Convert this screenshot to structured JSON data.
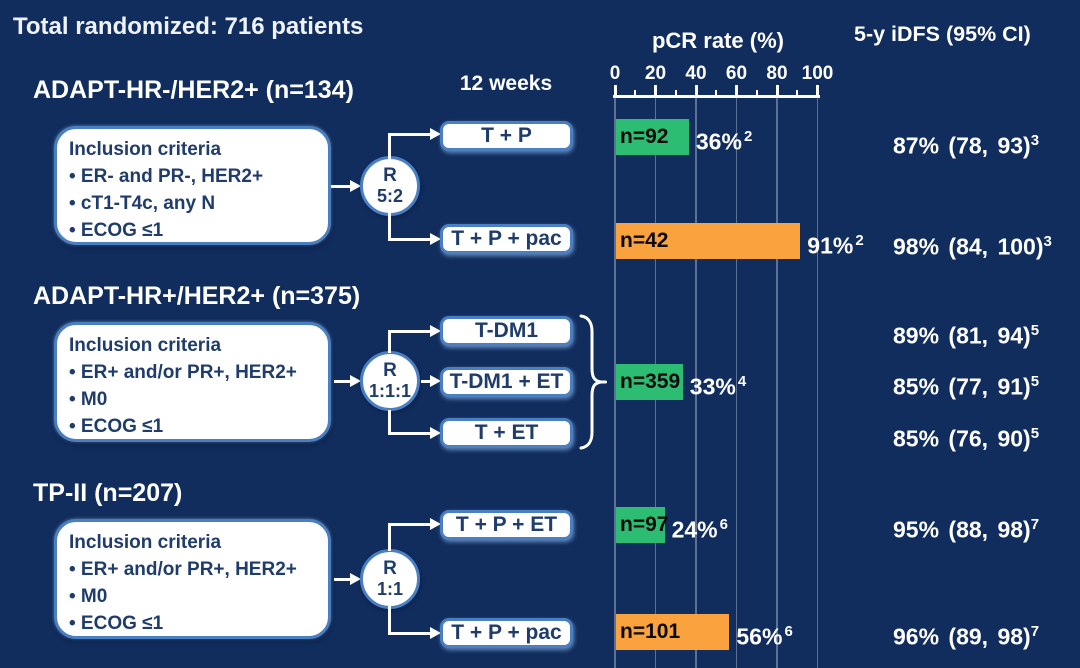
{
  "title": "Total randomized: 716 patients",
  "headers": {
    "timepoint": "12 weeks",
    "pcr": "pCR rate (%)",
    "idfs": "5-y iDFS (95% CI)"
  },
  "axis": {
    "min": 0,
    "max": 100,
    "ticks": [
      0,
      20,
      40,
      60,
      80,
      100
    ]
  },
  "colors": {
    "background": "#112D5E",
    "bar_green": "#2DBD72",
    "bar_orange": "#F9A23E",
    "box_border_blue": "#4A7FC1",
    "box_text_navy": "#1F3C6B",
    "text_white": "#FFFFFF"
  },
  "sections": [
    {
      "header": "ADAPT-HR-/HER2+ (n=134)",
      "inclusion_title": "Inclusion criteria",
      "inclusion_items": [
        "• ER- and PR-, HER2+",
        "• cT1-T4c, any N",
        "• ECOG ≤1"
      ],
      "r_label": "R",
      "r_ratio": "5:2",
      "arms": [
        {
          "label": "T + P",
          "n": "n=92",
          "pcr": 36,
          "pcr_label": "36%",
          "pcr_sup": "2",
          "bar_color": "green",
          "idfs": "87% (78, 93)",
          "idfs_sup": "3"
        },
        {
          "label": "T + P + pac",
          "n": "n=42",
          "pcr": 91,
          "pcr_label": "91%",
          "pcr_sup": "2",
          "bar_color": "orange",
          "idfs": "98% (84, 100)",
          "idfs_sup": "3"
        }
      ]
    },
    {
      "header": "ADAPT-HR+/HER2+ (n=375)",
      "inclusion_title": "Inclusion criteria",
      "inclusion_items": [
        "• ER+ and/or PR+, HER2+",
        "• M0",
        "• ECOG ≤1"
      ],
      "r_label": "R",
      "r_ratio": "1:1:1",
      "arms": [
        {
          "label": "T-DM1",
          "idfs": "89% (81, 94)",
          "idfs_sup": "5"
        },
        {
          "label": "T-DM1 + ET",
          "idfs": "85% (77, 91)",
          "idfs_sup": "5"
        },
        {
          "label": "T + ET",
          "idfs": "85% (76, 90)",
          "idfs_sup": "5"
        }
      ],
      "pooled_bar": {
        "n": "n=359",
        "pcr": 33,
        "pcr_label": "33%",
        "pcr_sup": "4",
        "bar_color": "green"
      }
    },
    {
      "header": "TP-II (n=207)",
      "inclusion_title": "Inclusion criteria",
      "inclusion_items": [
        "• ER+ and/or PR+, HER2+",
        "• M0",
        "• ECOG ≤1"
      ],
      "r_label": "R",
      "r_ratio": "1:1",
      "arms": [
        {
          "label": "T + P + ET",
          "n": "n=97",
          "pcr": 24,
          "pcr_label": "24%",
          "pcr_sup": "6",
          "bar_color": "green",
          "idfs": "95% (88, 98)",
          "idfs_sup": "7"
        },
        {
          "label": "T + P + pac",
          "n": "n=101",
          "pcr": 56,
          "pcr_label": "56%",
          "pcr_sup": "6",
          "bar_color": "orange",
          "idfs": "96% (89, 98)",
          "idfs_sup": "7"
        }
      ]
    }
  ],
  "chart_data": {
    "type": "bar",
    "orientation": "horizontal",
    "title": "pCR rate (%)",
    "xlabel": "pCR rate (%)",
    "xlim": [
      0,
      100
    ],
    "x_ticks": [
      0,
      20,
      40,
      60,
      80,
      100
    ],
    "grid": true,
    "categories": [
      "T + P (n=92)",
      "T + P + pac (n=42)",
      "T-DM1 / T-DM1 + ET / T + ET pooled (n=359)",
      "T + P + ET (n=97)",
      "T + P + pac (n=101)"
    ],
    "values": [
      36,
      91,
      33,
      24,
      56
    ],
    "bar_colors": [
      "#2DBD72",
      "#F9A23E",
      "#2DBD72",
      "#2DBD72",
      "#F9A23E"
    ],
    "bar_labels": [
      "n=92",
      "n=42",
      "n=359",
      "n=97",
      "n=101"
    ],
    "value_annotations": [
      "36%",
      "91%",
      "33%",
      "24%",
      "56%"
    ],
    "idfs_values": [
      "87% (78, 93)",
      "98% (84, 100)",
      "89% (81, 94)",
      "85% (77, 91)",
      "85% (76, 90)",
      "95% (88, 98)",
      "96% (89, 98)"
    ]
  }
}
